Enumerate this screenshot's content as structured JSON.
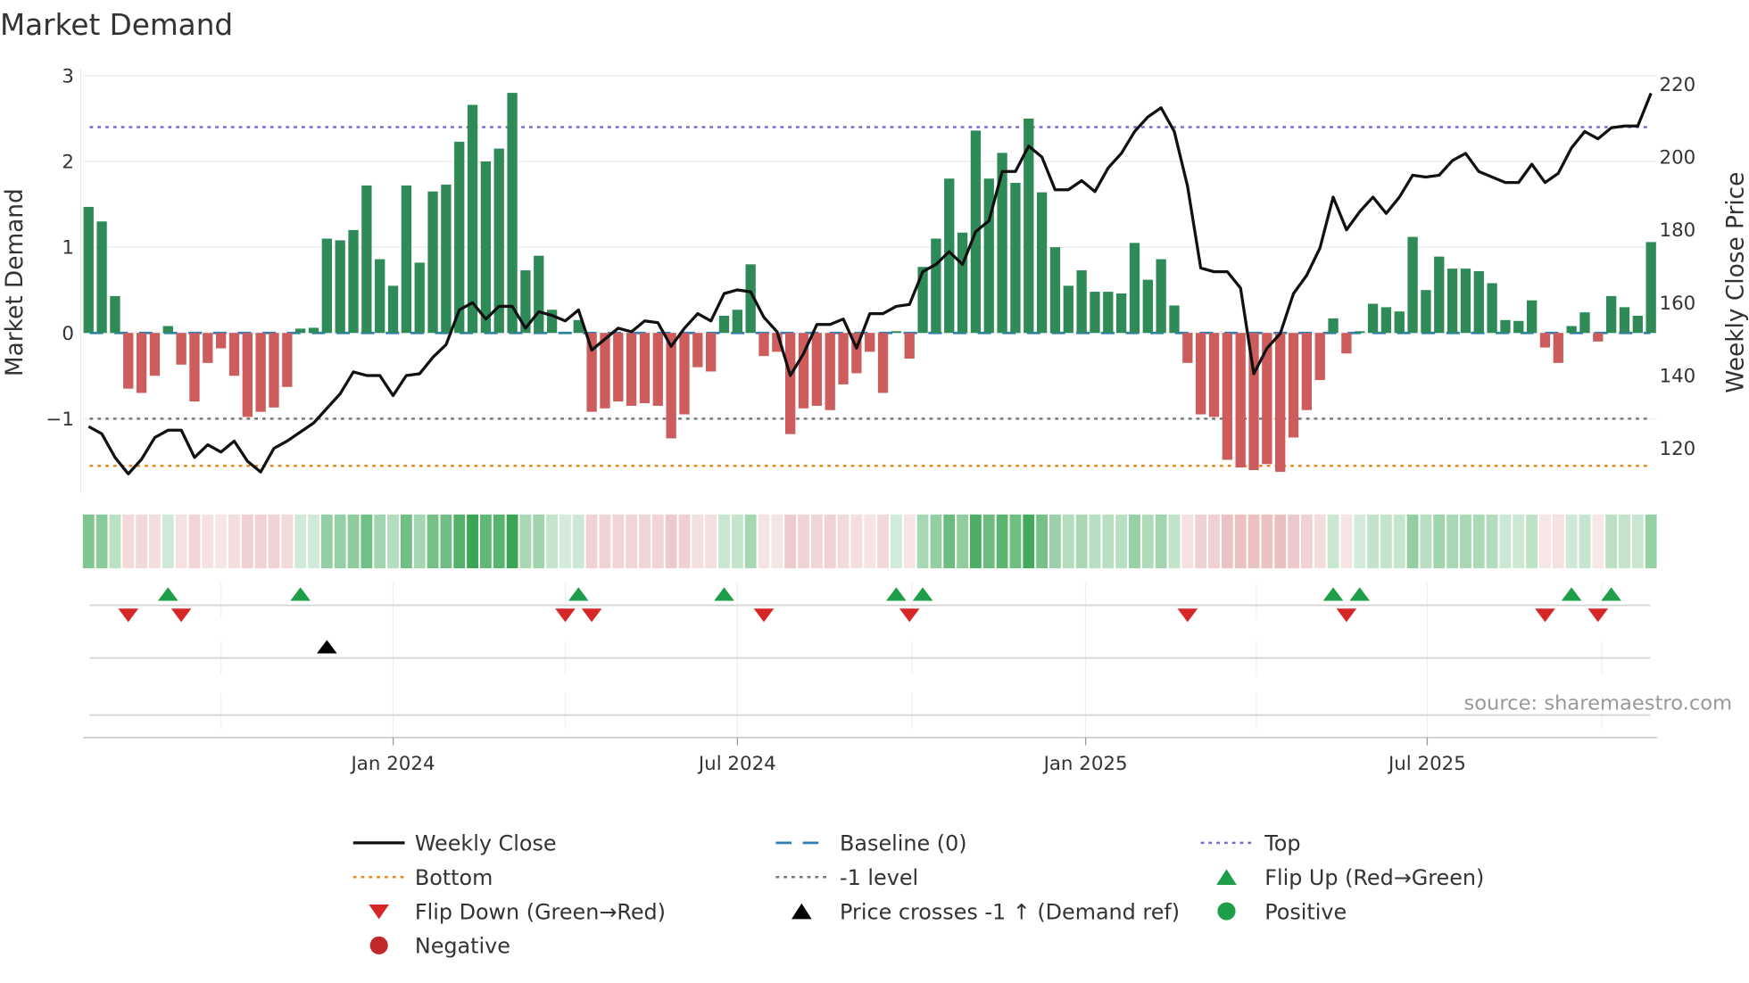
{
  "chart_data": {
    "type": "bar+line",
    "title": "Market Demand",
    "ylabel_left": "Market Demand",
    "ylabel_right": "Weekly Close Price",
    "ylim_left": [
      -1.85,
      3.0
    ],
    "ylim_right": [
      108,
      222
    ],
    "left_ticks": [
      3,
      2,
      1,
      0,
      -1
    ],
    "left_tick_labels": [
      "3",
      "2",
      "1",
      "0",
      "−1"
    ],
    "right_ticks": [
      220,
      200,
      180,
      160,
      140,
      120
    ],
    "right_tick_labels": [
      "220",
      "200",
      "180",
      "160",
      "140",
      "120"
    ],
    "x_unit": "week index",
    "x_ticks": [
      {
        "label": "Jan 2024",
        "week": 23.0
      },
      {
        "label": "Jul 2024",
        "week": 49.0
      },
      {
        "label": "Jan 2025",
        "week": 75.3
      },
      {
        "label": "Jul 2025",
        "week": 101.1
      }
    ],
    "reference_lines": {
      "top": 2.4,
      "bottom": -1.55,
      "minus_one": -1,
      "baseline": 0
    },
    "demand": [
      1.47,
      1.3,
      0.43,
      -0.65,
      -0.7,
      -0.5,
      0.08,
      -0.37,
      -0.8,
      -0.35,
      -0.18,
      -0.5,
      -0.98,
      -0.92,
      -0.87,
      -0.63,
      0.05,
      0.06,
      1.1,
      1.08,
      1.2,
      1.72,
      0.86,
      0.55,
      1.72,
      0.82,
      1.65,
      1.73,
      2.23,
      2.66,
      2.0,
      2.15,
      2.8,
      0.73,
      0.9,
      0.27,
      0.0,
      0.15,
      -0.92,
      -0.88,
      -0.8,
      -0.85,
      -0.82,
      -0.85,
      -1.23,
      -0.95,
      -0.4,
      -0.45,
      0.2,
      0.27,
      0.8,
      -0.27,
      -0.22,
      -1.18,
      -0.88,
      -0.85,
      -0.9,
      -0.6,
      -0.47,
      -0.22,
      -0.7,
      0.02,
      -0.3,
      0.77,
      1.1,
      1.8,
      1.17,
      2.36,
      1.8,
      2.1,
      1.75,
      2.5,
      1.64,
      1.0,
      0.55,
      0.73,
      0.48,
      0.48,
      0.46,
      1.05,
      0.62,
      0.86,
      0.32,
      -0.35,
      -0.95,
      -0.98,
      -1.48,
      -1.57,
      -1.6,
      -1.53,
      -1.62,
      -1.22,
      -0.9,
      -0.55,
      0.17,
      -0.24,
      0.02,
      0.34,
      0.3,
      0.25,
      1.12,
      0.5,
      0.89,
      0.75,
      0.75,
      0.72,
      0.58,
      0.15,
      0.14,
      0.38,
      -0.17,
      -0.35,
      0.08,
      0.24,
      -0.1,
      0.43,
      0.3,
      0.2,
      1.06
    ],
    "price": [
      126,
      124,
      117.5,
      113,
      117,
      123,
      125,
      125,
      117.5,
      121,
      119,
      122,
      116.5,
      113.5,
      120,
      122,
      124.5,
      127,
      131,
      135,
      141,
      140,
      140,
      134.5,
      140,
      140.5,
      145,
      148.5,
      158,
      160,
      155.5,
      159,
      159,
      153,
      157.5,
      156.5,
      155,
      158,
      147,
      150,
      153,
      152,
      155,
      154.5,
      148,
      153,
      157,
      155,
      162.5,
      163.5,
      163,
      156,
      152,
      140,
      146,
      154,
      154,
      155.5,
      147.5,
      157,
      157,
      159,
      159.5,
      168.5,
      170.5,
      174,
      170.5,
      179.5,
      182.5,
      196,
      196,
      203,
      200,
      191,
      191,
      193.5,
      190.5,
      197,
      201,
      207,
      211,
      213.5,
      207,
      192,
      169.5,
      168.5,
      168.5,
      164,
      140.5,
      147.5,
      151.5,
      162.5,
      167.5,
      175,
      189,
      180,
      185,
      189,
      184.5,
      189,
      195,
      194.5,
      195,
      199,
      201,
      196,
      194.5,
      193,
      193,
      198,
      193,
      195.5,
      202.5,
      207,
      205,
      208,
      208.5,
      208.5,
      217.5
    ],
    "flip_up_weeks": [
      6,
      16,
      37,
      48,
      61,
      63,
      94,
      96,
      112,
      115
    ],
    "flip_down_weeks": [
      3,
      7,
      36,
      38,
      51,
      62,
      83,
      95,
      110,
      114
    ],
    "price_cross_weeks": [
      18
    ],
    "legend": [
      {
        "label": "Weekly Close",
        "style": "line",
        "color": "#111111"
      },
      {
        "label": "Baseline (0)",
        "style": "dash",
        "color": "#2f7fb6"
      },
      {
        "label": "Top",
        "style": "dot",
        "color": "#7b68d0"
      },
      {
        "label": "Bottom",
        "style": "dot",
        "color": "#e8891c"
      },
      {
        "label": "-1 level",
        "style": "dot",
        "color": "#777777"
      },
      {
        "label": "Flip Up (Red→Green)",
        "style": "tri-up",
        "color": "#1e9e48"
      },
      {
        "label": "Flip Down (Green→Red)",
        "style": "tri-down",
        "color": "#d62728"
      },
      {
        "label": "Price crosses -1 ↑ (Demand ref)",
        "style": "tri-up",
        "color": "#000000"
      },
      {
        "label": "Positive",
        "style": "circle",
        "color": "#1e9e48"
      },
      {
        "label": "Negative",
        "style": "circle",
        "color": "#c0282a"
      }
    ],
    "legend_placement": "bottom",
    "grid": true
  },
  "colors": {
    "pos_bar": "#2e8b57",
    "neg_bar": "#cd5c5c",
    "pos_heat": "#3aa655",
    "neg_heat": "#d98c8c"
  },
  "source": "source: sharemaestro.com"
}
